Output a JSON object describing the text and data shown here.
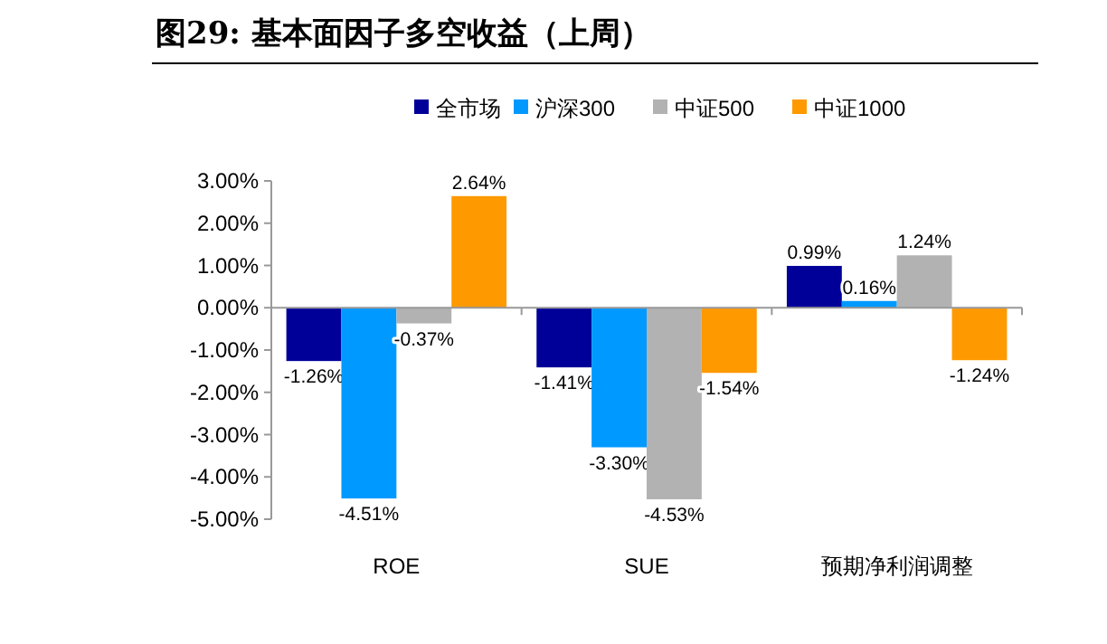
{
  "chart_data": {
    "type": "bar",
    "title": "图29:  基本面因子多空收益（上周）",
    "categories": [
      "ROE",
      "SUE",
      "预期净利润调整"
    ],
    "series": [
      {
        "name": "全市场",
        "color": "#000099",
        "values": [
          -1.26,
          -1.41,
          0.99
        ],
        "value_labels": [
          "-1.26%",
          "-1.41%",
          "0.99%"
        ]
      },
      {
        "name": "沪深300",
        "color": "#0099ff",
        "values": [
          -4.51,
          -3.3,
          0.16
        ],
        "value_labels": [
          "-4.51%",
          "-3.30%",
          "0.16%"
        ]
      },
      {
        "name": "中证500",
        "color": "#b2b2b2",
        "values": [
          -0.37,
          -4.53,
          1.24
        ],
        "value_labels": [
          "-0.37%",
          "-4.53%",
          "1.24%"
        ]
      },
      {
        "name": "中证1000",
        "color": "#ff9900",
        "values": [
          2.64,
          -1.54,
          -1.24
        ],
        "value_labels": [
          "2.64%",
          "-1.54%",
          "-1.24%"
        ]
      }
    ],
    "ylim": [
      -5,
      3
    ],
    "yticks": [
      {
        "value": -5,
        "label": "-5.00%"
      },
      {
        "value": -4,
        "label": "-4.00%"
      },
      {
        "value": -3,
        "label": "-3.00%"
      },
      {
        "value": -2,
        "label": "-2.00%"
      },
      {
        "value": -1,
        "label": "-1.00%"
      },
      {
        "value": 0,
        "label": "0.00%"
      },
      {
        "value": 1,
        "label": "1.00%"
      },
      {
        "value": 2,
        "label": "2.00%"
      },
      {
        "value": 3,
        "label": "3.00%"
      }
    ],
    "legend": "top"
  }
}
